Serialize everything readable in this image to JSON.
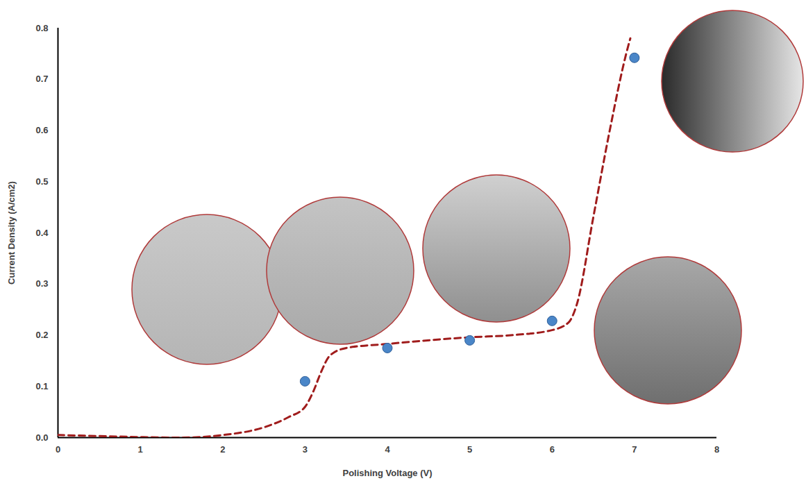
{
  "chart_data": {
    "type": "scatter",
    "x_label": "Polishing Voltage (V)",
    "y_label": "Current Density (A/cm2)",
    "xlim": [
      0,
      8
    ],
    "xticks": [
      0,
      1,
      2,
      3,
      4,
      5,
      6,
      7,
      8
    ],
    "ylim": [
      0,
      0.8
    ],
    "yticks": [
      0,
      0.1,
      0.2,
      0.3,
      0.4,
      0.5,
      0.6,
      0.7,
      0.8
    ],
    "grid": false,
    "series": [
      {
        "type": "line",
        "color": "#a01c1c",
        "line_style": "dashed",
        "x": [
          0,
          0.5,
          1,
          1.5,
          2,
          2.5,
          2.8,
          3,
          3.1,
          3.2,
          3.3,
          3.5,
          4,
          5,
          5.5,
          6,
          6.2,
          6.3,
          6.5,
          6.7,
          6.9,
          6.95
        ],
        "values": [
          0.005,
          0.003,
          0.001,
          0,
          0.005,
          0.02,
          0.04,
          0.06,
          0.09,
          0.13,
          0.16,
          0.175,
          0.183,
          0.196,
          0.2,
          0.21,
          0.225,
          0.26,
          0.43,
          0.6,
          0.75,
          0.78
        ]
      },
      {
        "type": "scatter",
        "color": "#4a86c8",
        "marker": "circle",
        "x": [
          3,
          4,
          5,
          6,
          7
        ],
        "values": [
          0.11,
          0.175,
          0.19,
          0.228,
          0.742
        ]
      }
    ]
  }
}
